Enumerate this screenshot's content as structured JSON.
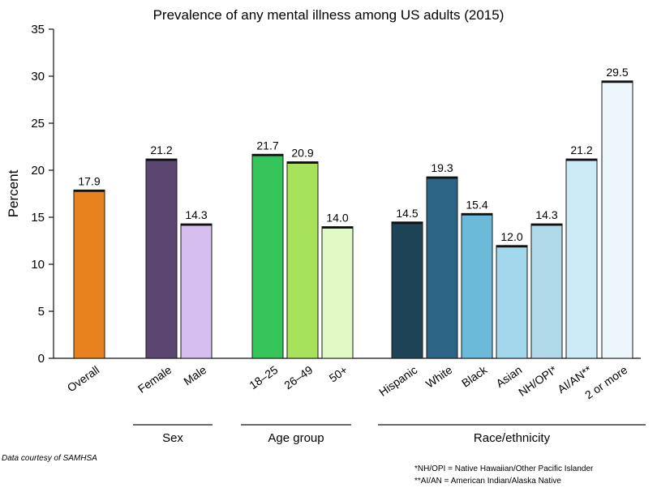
{
  "chart_data": {
    "type": "bar",
    "title": "Prevalence of any mental illness among US adults (2015)",
    "ylabel": "Percent",
    "ylim": [
      0,
      35
    ],
    "yticks": [
      0,
      5,
      10,
      15,
      20,
      25,
      30,
      35
    ],
    "categories": [
      "Overall",
      "Female",
      "Male",
      "18–25",
      "26–49",
      "50+",
      "Hispanic",
      "White",
      "Black",
      "Asian",
      "NH/OPI*",
      "AI/AN**",
      "2 or more"
    ],
    "values": [
      17.9,
      21.2,
      14.3,
      21.7,
      20.9,
      14.0,
      14.5,
      19.3,
      15.4,
      12.0,
      14.3,
      21.2,
      29.5
    ],
    "value_labels": [
      "17.9",
      "21.2",
      "14.3",
      "21.7",
      "20.9",
      "14.0",
      "14.5",
      "19.3",
      "15.4",
      "12.0",
      "14.3",
      "21.2",
      "29.5"
    ],
    "colors": [
      "#e8821e",
      "#5b4672",
      "#d6bff0",
      "#35c45a",
      "#a7e25a",
      "#e1f9c4",
      "#1e4256",
      "#2c6485",
      "#6cbad9",
      "#a2d7ec",
      "#b0d9ea",
      "#cdebf6",
      "#ecf6fb"
    ],
    "groups": [
      {
        "label": "Sex",
        "members": [
          "Female",
          "Male"
        ]
      },
      {
        "label": "Age group",
        "members": [
          "18–25",
          "26–49",
          "50+"
        ]
      },
      {
        "label": "Race/ethnicity",
        "members": [
          "Hispanic",
          "White",
          "Black",
          "Asian",
          "NH/OPI*",
          "AI/AN**",
          "2 or more"
        ]
      }
    ],
    "grid": false,
    "legend": "none"
  },
  "source_note": "Data courtesy of SAMHSA",
  "footnotes": [
    "*NH/OPI = Native Hawaiian/Other Pacific Islander",
    "**AI/AN = American Indian/Alaska Native"
  ]
}
